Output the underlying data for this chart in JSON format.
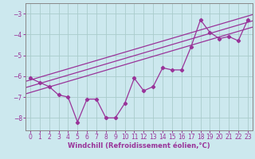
{
  "xlabel": "Windchill (Refroidissement éolien,°C)",
  "bg_color": "#cce8ee",
  "grid_color": "#aacccc",
  "line_color": "#993399",
  "spine_color": "#888888",
  "x_ticks": [
    0,
    1,
    2,
    3,
    4,
    5,
    6,
    7,
    8,
    9,
    10,
    11,
    12,
    13,
    14,
    15,
    16,
    17,
    18,
    19,
    20,
    21,
    22,
    23
  ],
  "y_ticks": [
    -8,
    -7,
    -6,
    -5,
    -4,
    -3
  ],
  "xlim": [
    -0.5,
    23.5
  ],
  "ylim": [
    -8.6,
    -2.5
  ],
  "data_line": [
    -6.1,
    -6.3,
    -6.5,
    -6.9,
    -7.0,
    -8.2,
    -7.1,
    -7.1,
    -8.0,
    -8.0,
    -7.3,
    -6.1,
    -6.7,
    -6.5,
    -5.6,
    -5.7,
    -5.7,
    -4.6,
    -3.3,
    -3.9,
    -4.2,
    -4.1,
    -4.3,
    -3.3
  ],
  "trend_lines": [
    [
      [
        -0.5,
        -6.25
      ],
      [
        23.5,
        -3.05
      ]
    ],
    [
      [
        -0.5,
        -6.55
      ],
      [
        23.5,
        -3.35
      ]
    ],
    [
      [
        -0.5,
        -6.85
      ],
      [
        23.5,
        -3.65
      ]
    ]
  ],
  "tick_fontsize": 5.5,
  "xlabel_fontsize": 6.0
}
